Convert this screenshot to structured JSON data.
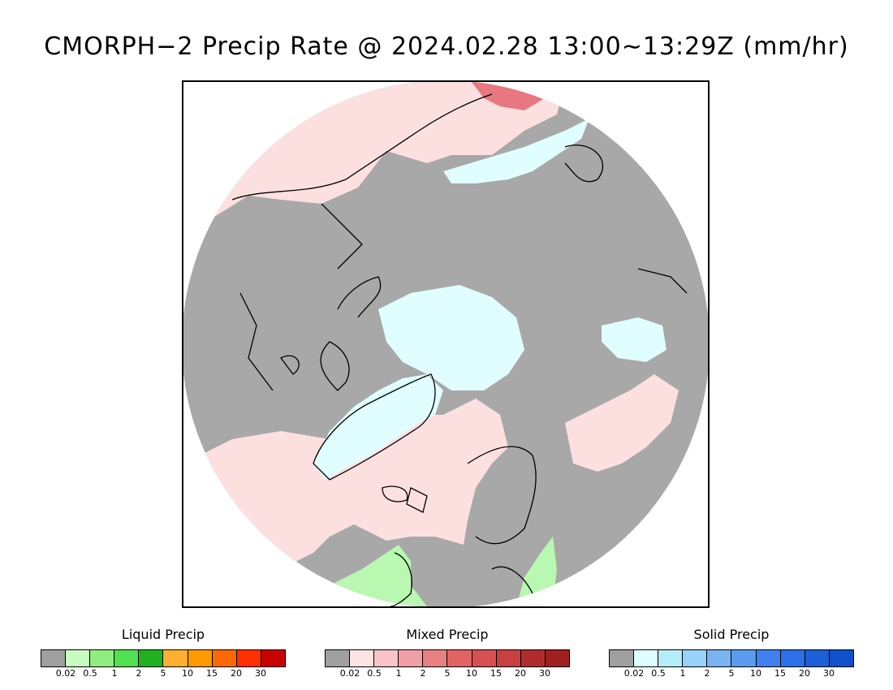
{
  "title": "CMORPH−2 Precip Rate @ 2024.02.28 13:00∼13:29Z (mm/hr)",
  "map": {
    "projection": "north-polar-stereographic",
    "colors": {
      "no_precip": "#a8a8a8",
      "mixed_light": "#fce0e0",
      "solid_light": "#e0feff",
      "liquid_light": "#b8f8b0",
      "liquid_mid": "#70e070",
      "mixed_mid": "#e87880",
      "coastline": "#000000"
    }
  },
  "legends": [
    {
      "title": "Liquid Precip",
      "colors": [
        "#a0a0a0",
        "#c8fcc0",
        "#90ee80",
        "#50e050",
        "#20b020",
        "#ffb030",
        "#ff9a00",
        "#ff6a00",
        "#ff3000",
        "#c80000"
      ],
      "ticks": [
        "0.02",
        "0.5",
        "1",
        "2",
        "5",
        "10",
        "15",
        "20",
        "30"
      ]
    },
    {
      "title": "Mixed Precip",
      "colors": [
        "#a0a0a0",
        "#fce4e4",
        "#f8c4c8",
        "#f0a0a4",
        "#e88080",
        "#e06464",
        "#d85050",
        "#c84040",
        "#b02c2c",
        "#a02020"
      ],
      "ticks": [
        "0.02",
        "0.5",
        "1",
        "2",
        "5",
        "10",
        "15",
        "20",
        "30"
      ]
    },
    {
      "title": "Solid Precip",
      "colors": [
        "#a0a0a0",
        "#e0ffff",
        "#b4eef8",
        "#96d2fa",
        "#78b4f0",
        "#5a9bf0",
        "#4080f0",
        "#2c70e8",
        "#1c60d8",
        "#1050c8"
      ],
      "ticks": [
        "0.02",
        "0.5",
        "1",
        "2",
        "5",
        "10",
        "15",
        "20",
        "30"
      ]
    }
  ]
}
